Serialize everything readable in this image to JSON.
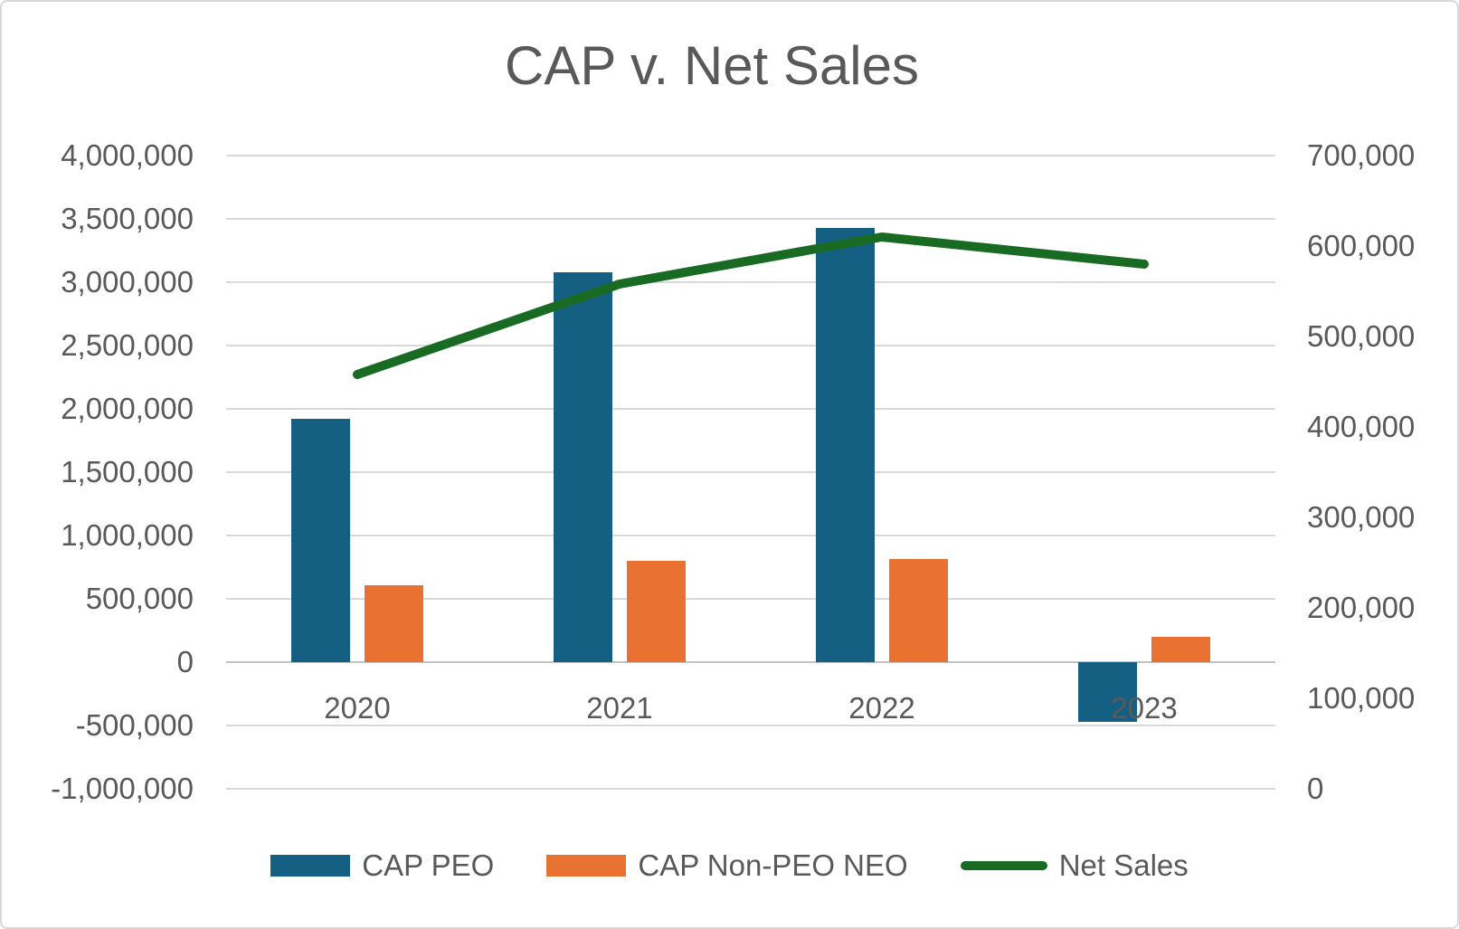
{
  "chart_data": {
    "type": "bar+line-combo",
    "title": "CAP v. Net Sales",
    "categories": [
      "2020",
      "2021",
      "2022",
      "2023"
    ],
    "series": [
      {
        "name": "CAP PEO",
        "type": "bar",
        "axis": "left",
        "color": "#156082",
        "values": [
          1920000,
          3080000,
          3430000,
          -470000
        ]
      },
      {
        "name": "CAP Non-PEO NEO",
        "type": "bar",
        "axis": "left",
        "color": "#E97132",
        "values": [
          610000,
          800000,
          815000,
          200000
        ]
      },
      {
        "name": "Net Sales",
        "type": "line",
        "axis": "right",
        "color": "#196B24",
        "values": [
          458000,
          558000,
          610000,
          580000
        ]
      }
    ],
    "left_axis": {
      "min": -1000000,
      "max": 4000000,
      "step": 500000,
      "tick_labels": [
        "4,000,000",
        "3,500,000",
        "3,000,000",
        "2,500,000",
        "2,000,000",
        "1,500,000",
        "1,000,000",
        "500,000",
        "0",
        "-500,000",
        "-1,000,000"
      ]
    },
    "right_axis": {
      "min": 0,
      "max": 700000,
      "step": 100000,
      "tick_labels": [
        "700,000",
        "600,000",
        "500,000",
        "400,000",
        "300,000",
        "200,000",
        "100,000",
        "0"
      ]
    },
    "grid": true,
    "legend_position": "bottom",
    "colors": {
      "background": "#FFFFFF",
      "border": "#D9D9D9",
      "gridline": "#D9D9D9",
      "text": "#595959",
      "cap_peo": "#156082",
      "cap_non_peo_neo": "#E97132",
      "net_sales": "#196B24"
    }
  }
}
